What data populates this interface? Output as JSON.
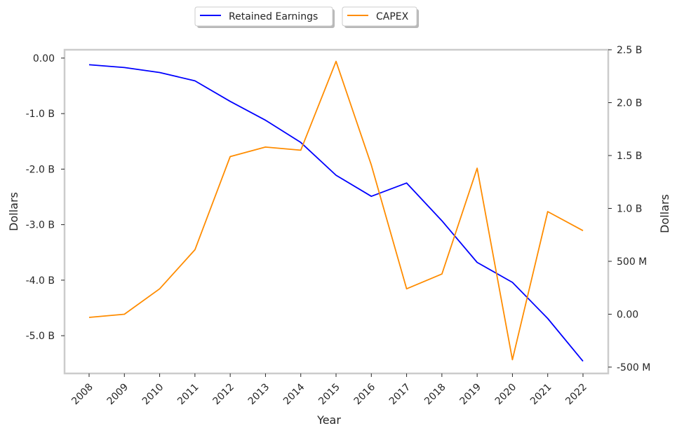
{
  "chart_data": {
    "type": "line",
    "x": [
      "2008",
      "2009",
      "2010",
      "2011",
      "2012",
      "2013",
      "2014",
      "2015",
      "2016",
      "2017",
      "2018",
      "2019",
      "2020",
      "2021",
      "2022"
    ],
    "xlabel": "Year",
    "ylabel_left": "Dollars",
    "ylabel_right": "Dollars",
    "grid": false,
    "legend_placement": "top-center",
    "left_axis": {
      "ylim": [
        -5.68,
        0.15
      ],
      "ticks": [
        0,
        -1,
        -2,
        -3,
        -4,
        -5
      ],
      "tick_labels": [
        "0.00",
        "-1.0 B",
        "-2.0 B",
        "-3.0 B",
        "-4.0 B",
        "-5.0 B"
      ],
      "unit": "billions"
    },
    "right_axis": {
      "ylim": [
        -0.56,
        2.5
      ],
      "ticks": [
        2.5,
        2.0,
        1.5,
        1.0,
        0.5,
        0.0,
        -0.5
      ],
      "tick_labels": [
        "2.5 B",
        "2.0 B",
        "1.5 B",
        "1.0 B",
        "500 M",
        "0.00",
        "-500 M"
      ],
      "unit": "billions"
    },
    "series": [
      {
        "name": "Retained Earnings",
        "axis": "left",
        "color": "#0000ff",
        "values": [
          -0.12,
          -0.17,
          -0.26,
          -0.41,
          -0.78,
          -1.12,
          -1.52,
          -2.11,
          -2.49,
          -2.25,
          -2.93,
          -3.68,
          -4.04,
          -4.69,
          -5.46
        ]
      },
      {
        "name": "CAPEX",
        "axis": "right",
        "color": "#ff8c00",
        "values": [
          -0.03,
          0.0,
          0.24,
          0.61,
          1.49,
          1.58,
          1.55,
          2.39,
          1.41,
          0.24,
          0.38,
          1.38,
          -0.43,
          0.97,
          0.79
        ]
      }
    ]
  }
}
